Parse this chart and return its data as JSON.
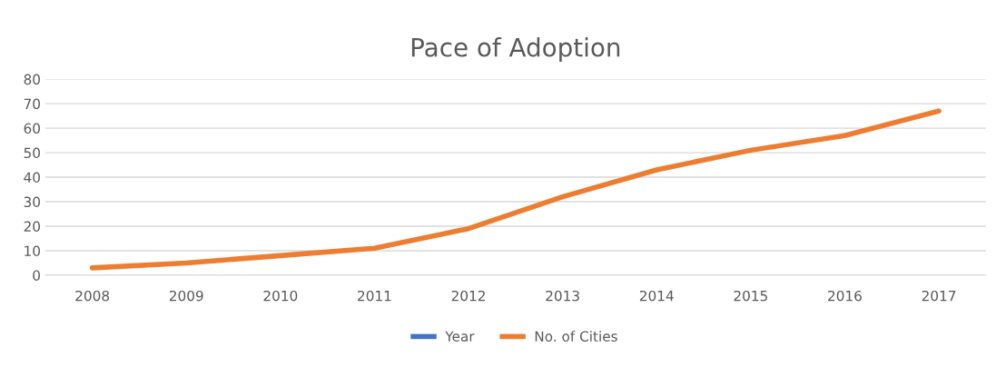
{
  "chart_data": {
    "type": "line",
    "title": "Pace of Adoption",
    "categories": [
      "2008",
      "2009",
      "2010",
      "2011",
      "2012",
      "2013",
      "2014",
      "2015",
      "2016",
      "2017"
    ],
    "series": [
      {
        "name": "Year",
        "color": "#4472c4",
        "values": [
          null,
          null,
          null,
          null,
          null,
          null,
          null,
          null,
          null,
          null
        ]
      },
      {
        "name": "No. of Cities",
        "color": "#ed7d31",
        "values": [
          3,
          5,
          8,
          11,
          19,
          32,
          43,
          51,
          57,
          67
        ]
      }
    ],
    "ylim": [
      0,
      80
    ],
    "yticks": [
      0,
      10,
      20,
      30,
      40,
      50,
      60,
      70,
      80
    ],
    "grid": "y",
    "legend": "bottom",
    "line_style": "solid",
    "marker": "none"
  }
}
